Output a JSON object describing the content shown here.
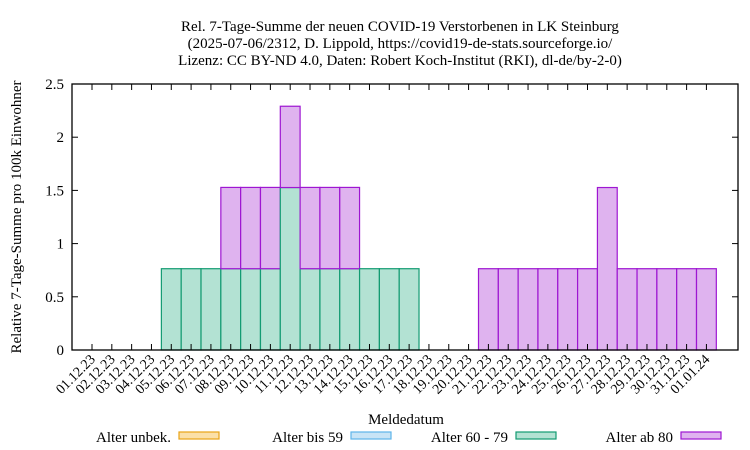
{
  "chart_data": {
    "type": "bar",
    "stacked": true,
    "title": [
      "Rel. 7-Tage-Summe der neuen COVID-19 Verstorbenen in LK Steinburg",
      "(2025-07-06/2312, D. Lippold, https://covid19-de-stats.sourceforge.io/",
      "Lizenz: CC BY-ND 4.0, Daten: Robert Koch-Institut (RKI), dl-de/by-2-0)"
    ],
    "xlabel": "Meldedatum",
    "ylabel": "Relative 7-Tage-Summe pro 100k Einwohner",
    "ylim": [
      0,
      2.5
    ],
    "yticks": [
      "0",
      "0.5",
      "1",
      "1.5",
      "2",
      "2.5"
    ],
    "legend_placement": "bottom",
    "grid": false,
    "categories": [
      "01.12.23",
      "02.12.23",
      "03.12.23",
      "04.12.23",
      "05.12.23",
      "06.12.23",
      "07.12.23",
      "08.12.23",
      "09.12.23",
      "10.12.23",
      "11.12.23",
      "12.12.23",
      "13.12.23",
      "14.12.23",
      "15.12.23",
      "16.12.23",
      "17.12.23",
      "18.12.23",
      "19.12.23",
      "20.12.23",
      "21.12.23",
      "22.12.23",
      "23.12.23",
      "24.12.23",
      "25.12.23",
      "26.12.23",
      "27.12.23",
      "28.12.23",
      "29.12.23",
      "30.12.23",
      "31.12.23",
      "01.01.24"
    ],
    "series": [
      {
        "name": "Alter unbek.",
        "fill": "#fbe0a8",
        "stroke": "#e8a317",
        "values": [
          0,
          0,
          0,
          0,
          0,
          0,
          0,
          0,
          0,
          0,
          0,
          0,
          0,
          0,
          0,
          0,
          0,
          0,
          0,
          0,
          0,
          0,
          0,
          0,
          0,
          0,
          0,
          0,
          0,
          0,
          0,
          0
        ]
      },
      {
        "name": "Alter bis 59",
        "fill": "#c8e4f6",
        "stroke": "#5eb4ea",
        "values": [
          0,
          0,
          0,
          0,
          0,
          0,
          0,
          0,
          0,
          0,
          0,
          0,
          0,
          0,
          0,
          0,
          0,
          0,
          0,
          0,
          0,
          0,
          0,
          0,
          0,
          0,
          0,
          0,
          0,
          0,
          0,
          0
        ]
      },
      {
        "name": "Alter 60 - 79",
        "fill": "#b3e2d3",
        "stroke": "#139b72",
        "values": [
          0,
          0,
          0,
          0,
          0.764,
          0.764,
          0.764,
          0.764,
          0.764,
          0.764,
          1.527,
          0.764,
          0.764,
          0.764,
          0.764,
          0.764,
          0.764,
          0,
          0,
          0,
          0,
          0,
          0,
          0,
          0,
          0,
          0,
          0,
          0,
          0,
          0,
          0
        ]
      },
      {
        "name": "Alter ab 80",
        "fill": "#dfb3ef",
        "stroke": "#9e16d2",
        "values": [
          0,
          0,
          0,
          0,
          0,
          0,
          0,
          0.764,
          0.764,
          0.764,
          0.764,
          0.764,
          0.764,
          0.764,
          0,
          0,
          0,
          0,
          0,
          0,
          0.764,
          0.764,
          0.764,
          0.764,
          0.764,
          0.764,
          1.527,
          0.764,
          0.764,
          0.764,
          0.764,
          0.764
        ]
      }
    ]
  }
}
